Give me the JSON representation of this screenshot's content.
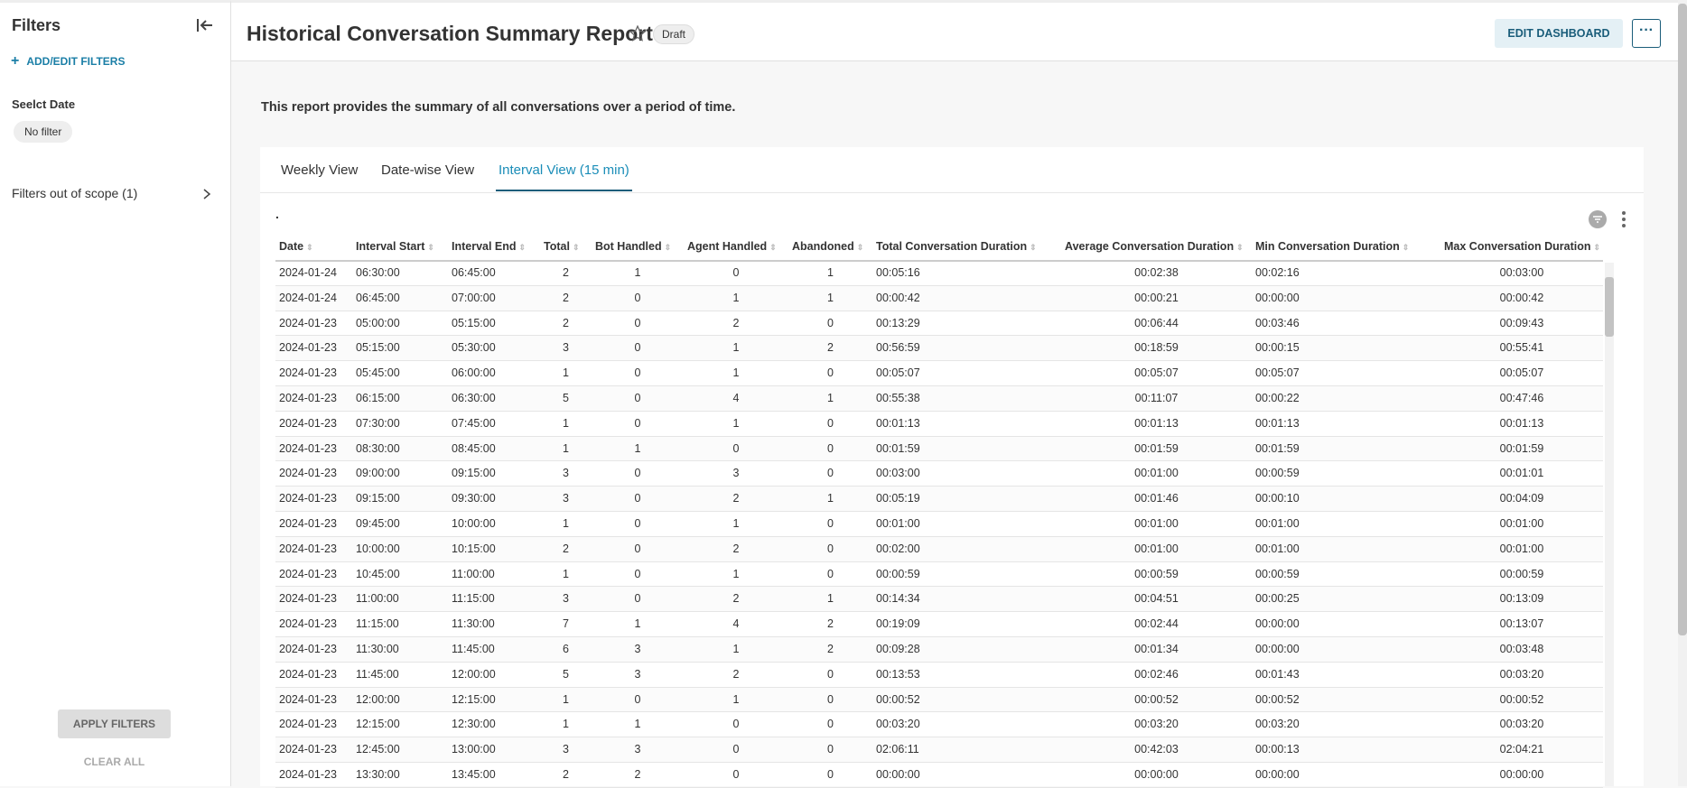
{
  "sidebar": {
    "title": "Filters",
    "add_filters": "ADD/EDIT FILTERS",
    "filter_label": "Seelct Date",
    "filter_value": "No filter",
    "out_of_scope": "Filters out of scope (1)",
    "apply": "APPLY FILTERS",
    "clear": "CLEAR ALL"
  },
  "header": {
    "title": "Historical Conversation Summary Report",
    "badge": "Draft",
    "edit_button": "EDIT DASHBOARD"
  },
  "description": "This report provides the summary of all conversations over a period of time.",
  "tabs": [
    "Weekly View",
    "Date-wise View",
    "Interval View (15 min)"
  ],
  "table": {
    "caption": ".",
    "columns": [
      "Date",
      "Interval Start",
      "Interval End",
      "Total",
      "Bot Handled",
      "Agent Handled",
      "Abandoned",
      "Total Conversation Duration",
      "Average Conversation Duration",
      "Min Conversation Duration",
      "Max Conversation Duration"
    ],
    "rows": [
      [
        "2024-01-24",
        "06:30:00",
        "06:45:00",
        2,
        1,
        0,
        1,
        "00:05:16",
        "00:02:38",
        "00:02:16",
        "00:03:00"
      ],
      [
        "2024-01-24",
        "06:45:00",
        "07:00:00",
        2,
        0,
        1,
        1,
        "00:00:42",
        "00:00:21",
        "00:00:00",
        "00:00:42"
      ],
      [
        "2024-01-23",
        "05:00:00",
        "05:15:00",
        2,
        0,
        2,
        0,
        "00:13:29",
        "00:06:44",
        "00:03:46",
        "00:09:43"
      ],
      [
        "2024-01-23",
        "05:15:00",
        "05:30:00",
        3,
        0,
        1,
        2,
        "00:56:59",
        "00:18:59",
        "00:00:15",
        "00:55:41"
      ],
      [
        "2024-01-23",
        "05:45:00",
        "06:00:00",
        1,
        0,
        1,
        0,
        "00:05:07",
        "00:05:07",
        "00:05:07",
        "00:05:07"
      ],
      [
        "2024-01-23",
        "06:15:00",
        "06:30:00",
        5,
        0,
        4,
        1,
        "00:55:38",
        "00:11:07",
        "00:00:22",
        "00:47:46"
      ],
      [
        "2024-01-23",
        "07:30:00",
        "07:45:00",
        1,
        0,
        1,
        0,
        "00:01:13",
        "00:01:13",
        "00:01:13",
        "00:01:13"
      ],
      [
        "2024-01-23",
        "08:30:00",
        "08:45:00",
        1,
        1,
        0,
        0,
        "00:01:59",
        "00:01:59",
        "00:01:59",
        "00:01:59"
      ],
      [
        "2024-01-23",
        "09:00:00",
        "09:15:00",
        3,
        0,
        3,
        0,
        "00:03:00",
        "00:01:00",
        "00:00:59",
        "00:01:01"
      ],
      [
        "2024-01-23",
        "09:15:00",
        "09:30:00",
        3,
        0,
        2,
        1,
        "00:05:19",
        "00:01:46",
        "00:00:10",
        "00:04:09"
      ],
      [
        "2024-01-23",
        "09:45:00",
        "10:00:00",
        1,
        0,
        1,
        0,
        "00:01:00",
        "00:01:00",
        "00:01:00",
        "00:01:00"
      ],
      [
        "2024-01-23",
        "10:00:00",
        "10:15:00",
        2,
        0,
        2,
        0,
        "00:02:00",
        "00:01:00",
        "00:01:00",
        "00:01:00"
      ],
      [
        "2024-01-23",
        "10:45:00",
        "11:00:00",
        1,
        0,
        1,
        0,
        "00:00:59",
        "00:00:59",
        "00:00:59",
        "00:00:59"
      ],
      [
        "2024-01-23",
        "11:00:00",
        "11:15:00",
        3,
        0,
        2,
        1,
        "00:14:34",
        "00:04:51",
        "00:00:25",
        "00:13:09"
      ],
      [
        "2024-01-23",
        "11:15:00",
        "11:30:00",
        7,
        1,
        4,
        2,
        "00:19:09",
        "00:02:44",
        "00:00:00",
        "00:13:07"
      ],
      [
        "2024-01-23",
        "11:30:00",
        "11:45:00",
        6,
        3,
        1,
        2,
        "00:09:28",
        "00:01:34",
        "00:00:00",
        "00:03:48"
      ],
      [
        "2024-01-23",
        "11:45:00",
        "12:00:00",
        5,
        3,
        2,
        0,
        "00:13:53",
        "00:02:46",
        "00:01:43",
        "00:03:20"
      ],
      [
        "2024-01-23",
        "12:00:00",
        "12:15:00",
        1,
        0,
        1,
        0,
        "00:00:52",
        "00:00:52",
        "00:00:52",
        "00:00:52"
      ],
      [
        "2024-01-23",
        "12:15:00",
        "12:30:00",
        1,
        1,
        0,
        0,
        "00:03:20",
        "00:03:20",
        "00:03:20",
        "00:03:20"
      ],
      [
        "2024-01-23",
        "12:45:00",
        "13:00:00",
        3,
        3,
        0,
        0,
        "02:06:11",
        "00:42:03",
        "00:00:13",
        "02:04:21"
      ],
      [
        "2024-01-23",
        "13:30:00",
        "13:45:00",
        2,
        2,
        0,
        0,
        "00:00:00",
        "00:00:00",
        "00:00:00",
        "00:00:00"
      ]
    ]
  }
}
